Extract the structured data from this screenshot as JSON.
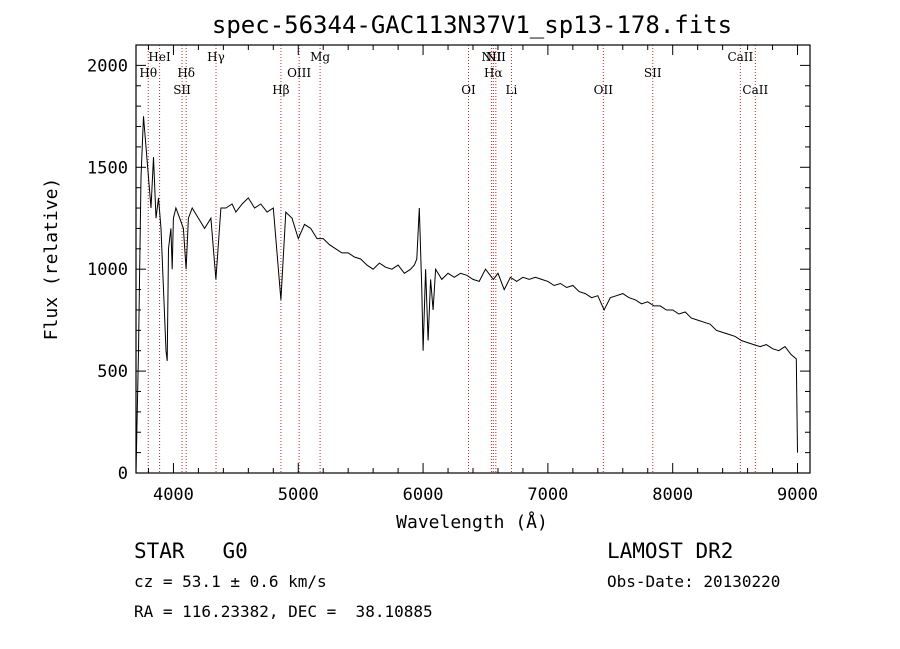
{
  "chart_data": {
    "type": "line",
    "title": "spec-56344-GAC113N37V1_sp13-178.fits",
    "xlabel": "Wavelength (Å)",
    "ylabel": "Flux (relative)",
    "xlim": [
      3700,
      9100
    ],
    "ylim": [
      0,
      2100
    ],
    "xticks": [
      4000,
      5000,
      6000,
      7000,
      8000,
      9000
    ],
    "yticks": [
      0,
      500,
      1000,
      1500,
      2000
    ],
    "grid": false,
    "series": [
      {
        "x": [
          3700,
          3720,
          3740,
          3760,
          3780,
          3800,
          3820,
          3840,
          3860,
          3880,
          3900,
          3920,
          3940,
          3950,
          3960,
          3970,
          3980,
          3990,
          4000,
          4020,
          4050,
          4080,
          4101,
          4120,
          4150,
          4200,
          4250,
          4300,
          4340,
          4380,
          4420,
          4470,
          4500,
          4550,
          4600,
          4650,
          4700,
          4750,
          4800,
          4861,
          4900,
          4950,
          5000,
          5050,
          5100,
          5150,
          5200,
          5250,
          5300,
          5350,
          5400,
          5450,
          5500,
          5550,
          5600,
          5650,
          5700,
          5750,
          5800,
          5850,
          5900,
          5930,
          5950,
          5970,
          5990,
          6000,
          6020,
          6040,
          6060,
          6080,
          6100,
          6150,
          6200,
          6250,
          6300,
          6350,
          6400,
          6450,
          6500,
          6563,
          6600,
          6650,
          6700,
          6750,
          6800,
          6850,
          6900,
          6950,
          7000,
          7050,
          7100,
          7150,
          7200,
          7250,
          7300,
          7350,
          7400,
          7450,
          7500,
          7550,
          7600,
          7650,
          7700,
          7750,
          7800,
          7850,
          7900,
          7950,
          8000,
          8050,
          8100,
          8150,
          8200,
          8250,
          8300,
          8350,
          8400,
          8450,
          8500,
          8550,
          8600,
          8650,
          8700,
          8750,
          8800,
          8850,
          8900,
          8950,
          8990,
          9000
        ],
        "y": [
          0,
          600,
          1450,
          1750,
          1600,
          1450,
          1300,
          1550,
          1250,
          1350,
          1200,
          900,
          600,
          550,
          1100,
          1150,
          1200,
          1000,
          1250,
          1300,
          1250,
          1200,
          1000,
          1250,
          1300,
          1250,
          1200,
          1250,
          950,
          1300,
          1300,
          1320,
          1280,
          1320,
          1350,
          1300,
          1320,
          1280,
          1300,
          850,
          1280,
          1250,
          1150,
          1220,
          1200,
          1150,
          1150,
          1120,
          1100,
          1080,
          1080,
          1060,
          1050,
          1020,
          1000,
          1030,
          1010,
          1000,
          1020,
          980,
          1000,
          1020,
          1050,
          1300,
          900,
          600,
          1000,
          650,
          950,
          800,
          1000,
          950,
          980,
          960,
          980,
          970,
          950,
          940,
          1000,
          950,
          980,
          900,
          960,
          940,
          960,
          950,
          960,
          950,
          940,
          920,
          930,
          910,
          920,
          890,
          880,
          860,
          870,
          800,
          860,
          870,
          880,
          860,
          850,
          830,
          840,
          820,
          820,
          800,
          800,
          780,
          790,
          760,
          750,
          740,
          730,
          700,
          690,
          680,
          670,
          650,
          640,
          630,
          620,
          630,
          610,
          600,
          620,
          580,
          560,
          100
        ]
      }
    ],
    "lines": [
      {
        "name": "Hθ",
        "x": 3798,
        "row": 1
      },
      {
        "name": "HeI",
        "x": 3889,
        "row": 0
      },
      {
        "name": "SII",
        "x": 4069,
        "row": 2
      },
      {
        "name": "Hδ",
        "x": 4102,
        "row": 1
      },
      {
        "name": "Hγ",
        "x": 4341,
        "row": 0
      },
      {
        "name": "Hβ",
        "x": 4861,
        "row": 2
      },
      {
        "name": "OIII",
        "x": 5007,
        "row": 1
      },
      {
        "name": "Mg",
        "x": 5175,
        "row": 0
      },
      {
        "name": "OI",
        "x": 6364,
        "row": 2
      },
      {
        "name": "NII",
        "x": 6548,
        "row": 0
      },
      {
        "name": "Hα",
        "x": 6563,
        "row": 1
      },
      {
        "name": "NII",
        "x": 6583,
        "row": 0
      },
      {
        "name": "Li",
        "x": 6708,
        "row": 2
      },
      {
        "name": "OII",
        "x": 7444,
        "row": 2
      },
      {
        "name": "SII",
        "x": 7840,
        "row": 1
      },
      {
        "name": "CaII",
        "x": 8542,
        "row": 0
      },
      {
        "name": "CaII",
        "x": 8662,
        "row": 2
      }
    ]
  },
  "info": {
    "object_class": "STAR",
    "subclass": "G0",
    "survey": "LAMOST DR2",
    "cz_label": "cz = 53.1 ± 0.6 km/s",
    "obs_date": "Obs-Date: 20130220",
    "radec": "RA = 116.23382, DEC =  38.10885"
  },
  "colors": {
    "spectrum": "#000000",
    "line_markers": "#b03030",
    "axes": "#000000"
  }
}
